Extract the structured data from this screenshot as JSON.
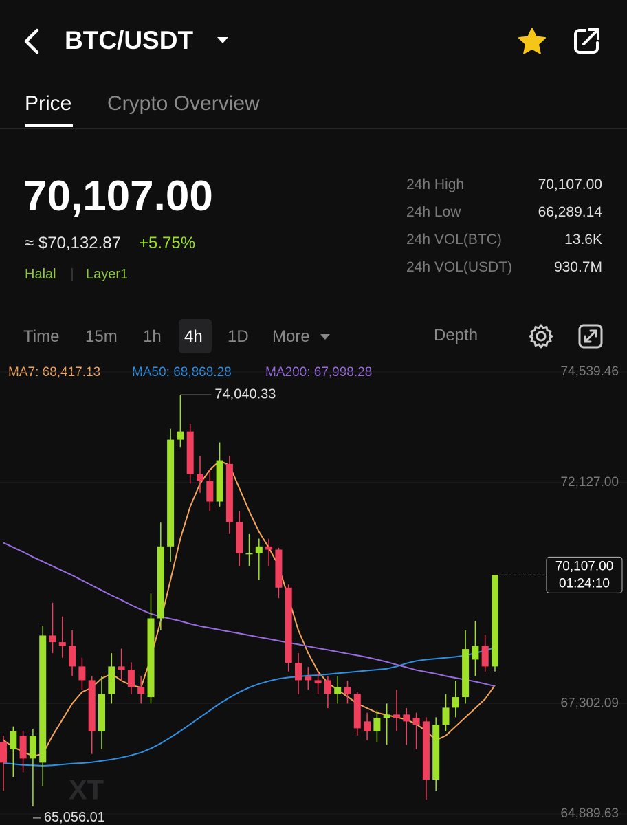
{
  "header": {
    "title": "BTC/USDT"
  },
  "tabs": [
    "Price",
    "Crypto Overview"
  ],
  "price": {
    "last": "70,107.00",
    "usd": "≈ $70,132.87",
    "change": "+5.75%",
    "tags": [
      "Halal",
      "Layer1"
    ]
  },
  "stats": [
    [
      "24h High",
      "70,107.00"
    ],
    [
      "24h Low",
      "66,289.14"
    ],
    [
      "24h VOL(BTC)",
      "13.6K"
    ],
    [
      "24h VOL(USDT)",
      "930.7M"
    ]
  ],
  "intervals": [
    "Time",
    "15m",
    "1h",
    "4h",
    "1D",
    "More"
  ],
  "depth": "Depth",
  "watermark": "XT",
  "chart_data": {
    "type": "candlestick",
    "up_color": "#9ee02a",
    "down_color": "#f0405e",
    "ylim": [
      64889.63,
      74539.46
    ],
    "yticks": [
      {
        "value": 74539.46,
        "label": "74,539.46"
      },
      {
        "value": 72127.0,
        "label": "72,127.00"
      },
      {
        "value": 67302.09,
        "label": "67,302.09"
      },
      {
        "value": 64889.63,
        "label": "64,889.63"
      }
    ],
    "grid": true,
    "open": [
      66460,
      66300,
      66600,
      66100,
      66010,
      68785,
      68640,
      68560,
      68110,
      67810,
      66690,
      67510,
      68110,
      68040,
      67660,
      67440,
      69160,
      70730,
      73060,
      73240,
      72310,
      72160,
      71710,
      72530,
      71260,
      70580,
      70580,
      70730,
      70660,
      69830,
      68190,
      67890,
      67810,
      67810,
      67510,
      67660,
      67510,
      66910,
      66690,
      66990,
      67060,
      67060,
      66990,
      66910,
      65640,
      66840,
      67210,
      67440,
      68260,
      68560,
      68110
    ],
    "high": [
      66600,
      66800,
      66700,
      66750,
      69000,
      69500,
      69200,
      68900,
      68300,
      67900,
      67900,
      68400,
      68500,
      68200,
      67900,
      69700,
      71250,
      73300,
      74040.33,
      73400,
      72700,
      72400,
      73000,
      72700,
      71500,
      71000,
      70900,
      70900,
      70700,
      69900,
      68400,
      68100,
      68000,
      67900,
      67900,
      67800,
      67550,
      67100,
      67150,
      67300,
      67600,
      67200,
      67100,
      67000,
      67000,
      67500,
      67800,
      68900,
      69100,
      68800,
      70107
    ],
    "low": [
      65400,
      65700,
      65800,
      65056.01,
      65500,
      68400,
      68300,
      67900,
      67600,
      66200,
      66300,
      67300,
      67800,
      67500,
      67300,
      67300,
      68900,
      70400,
      72900,
      72100,
      71900,
      71500,
      71600,
      71000,
      70300,
      70300,
      70000,
      70300,
      69600,
      68000,
      67500,
      67600,
      67500,
      67200,
      67300,
      67300,
      66600,
      66500,
      66450,
      66400,
      66700,
      66400,
      66300,
      65200,
      65400,
      66700,
      67000,
      67300,
      67900,
      68000,
      68000
    ],
    "close": [
      66010,
      66700,
      66100,
      66600,
      68785,
      68640,
      68560,
      68110,
      67810,
      66690,
      67510,
      68110,
      68040,
      67660,
      67510,
      69160,
      70730,
      73060,
      73240,
      72310,
      72160,
      71710,
      72610,
      71260,
      70580,
      70580,
      70730,
      70660,
      69830,
      68190,
      67810,
      67810,
      67740,
      67510,
      67660,
      67510,
      66760,
      66690,
      66990,
      67060,
      66990,
      66910,
      66840,
      65640,
      66840,
      67210,
      67440,
      68490,
      68560,
      68110,
      70107
    ],
    "series": [
      {
        "name": "MA7: 68,417.13",
        "color": "#f2a55a",
        "values": [
          66500,
          66350,
          66250,
          66150,
          66200,
          66600,
          66950,
          67300,
          67550,
          67650,
          67850,
          67950,
          67800,
          67700,
          67650,
          68300,
          69100,
          70000,
          70900,
          71600,
          72100,
          72400,
          72600,
          72500,
          72000,
          71500,
          71050,
          70700,
          70300,
          69600,
          68900,
          68400,
          68000,
          67750,
          67600,
          67450,
          67300,
          67200,
          67100,
          67050,
          67000,
          66950,
          66850,
          66700,
          66500,
          66600,
          66800,
          67000,
          67200,
          67400,
          67700
        ]
      },
      {
        "name": "MA50: 68,868.28",
        "color": "#2f8fe0",
        "values": [
          66000,
          65980,
          65960,
          65950,
          65940,
          65950,
          65970,
          65990,
          66000,
          66020,
          66050,
          66080,
          66120,
          66170,
          66230,
          66320,
          66430,
          66560,
          66700,
          66850,
          67000,
          67150,
          67300,
          67430,
          67550,
          67650,
          67730,
          67790,
          67840,
          67870,
          67890,
          67910,
          67920,
          67940,
          67960,
          67980,
          68000,
          68020,
          68040,
          68060,
          68110,
          68180,
          68230,
          68260,
          68280,
          68300,
          68320,
          68350,
          68400,
          68460,
          68520
        ]
      },
      {
        "name": "MA200: 67,998.28",
        "color": "#9a6be0",
        "values": [
          70810,
          70710,
          70610,
          70500,
          70400,
          70300,
          70200,
          70100,
          69990,
          69880,
          69770,
          69660,
          69560,
          69450,
          69350,
          69260,
          69200,
          69150,
          69100,
          69040,
          68990,
          68950,
          68910,
          68870,
          68830,
          68790,
          68750,
          68710,
          68670,
          68630,
          68590,
          68550,
          68510,
          68470,
          68430,
          68390,
          68350,
          68310,
          68260,
          68210,
          68150,
          68090,
          68030,
          67990,
          67950,
          67900,
          67860,
          67820,
          67780,
          67730,
          67680
        ]
      }
    ],
    "high_label": "74,040.33",
    "low_label": "65,056.01",
    "last_label": "70,107.00",
    "countdown": "01:24:10"
  }
}
